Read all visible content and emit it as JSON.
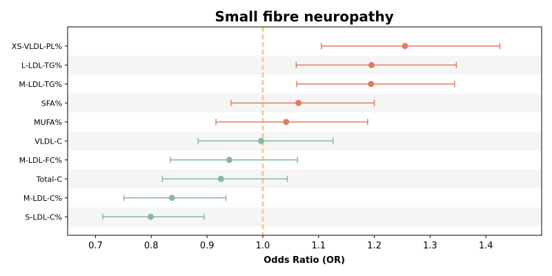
{
  "chart_data": {
    "type": "scatter",
    "subtype": "forest-plot",
    "title": "Small fibre neuropathy",
    "xlabel": "Odds Ratio (OR)",
    "ylabel": "",
    "xlim": [
      0.65,
      1.5
    ],
    "xticks": [
      0.7,
      0.8,
      0.9,
      1.0,
      1.1,
      1.2,
      1.3,
      1.4
    ],
    "xtick_labels": [
      "0.7",
      "0.8",
      "0.9",
      "1.0",
      "1.1",
      "1.2",
      "1.3",
      "1.4"
    ],
    "reference_line": 1.0,
    "colors": {
      "positive": "#e07b5f",
      "negative": "#86b8a0",
      "reference": "#eecb7f",
      "band": "#f5f5f5"
    },
    "rows": [
      {
        "label": "XS-VLDL-PL%",
        "or": 1.255,
        "ci_low": 1.105,
        "ci_high": 1.425
      },
      {
        "label": "L-LDL-TG%",
        "or": 1.195,
        "ci_low": 1.06,
        "ci_high": 1.347
      },
      {
        "label": "M-LDL-TG%",
        "or": 1.194,
        "ci_low": 1.061,
        "ci_high": 1.344
      },
      {
        "label": "SFA%",
        "or": 1.064,
        "ci_low": 0.943,
        "ci_high": 1.2
      },
      {
        "label": "MUFA%",
        "or": 1.042,
        "ci_low": 0.916,
        "ci_high": 1.188
      },
      {
        "label": "VLDL-C",
        "or": 0.997,
        "ci_low": 0.884,
        "ci_high": 1.126
      },
      {
        "label": "M-LDL-FC%",
        "or": 0.94,
        "ci_low": 0.834,
        "ci_high": 1.062
      },
      {
        "label": "Total-C",
        "or": 0.925,
        "ci_low": 0.82,
        "ci_high": 1.044
      },
      {
        "label": "M-LDL-C%",
        "or": 0.837,
        "ci_low": 0.751,
        "ci_high": 0.934
      },
      {
        "label": "S-LDL-C%",
        "or": 0.799,
        "ci_low": 0.713,
        "ci_high": 0.895
      }
    ]
  }
}
